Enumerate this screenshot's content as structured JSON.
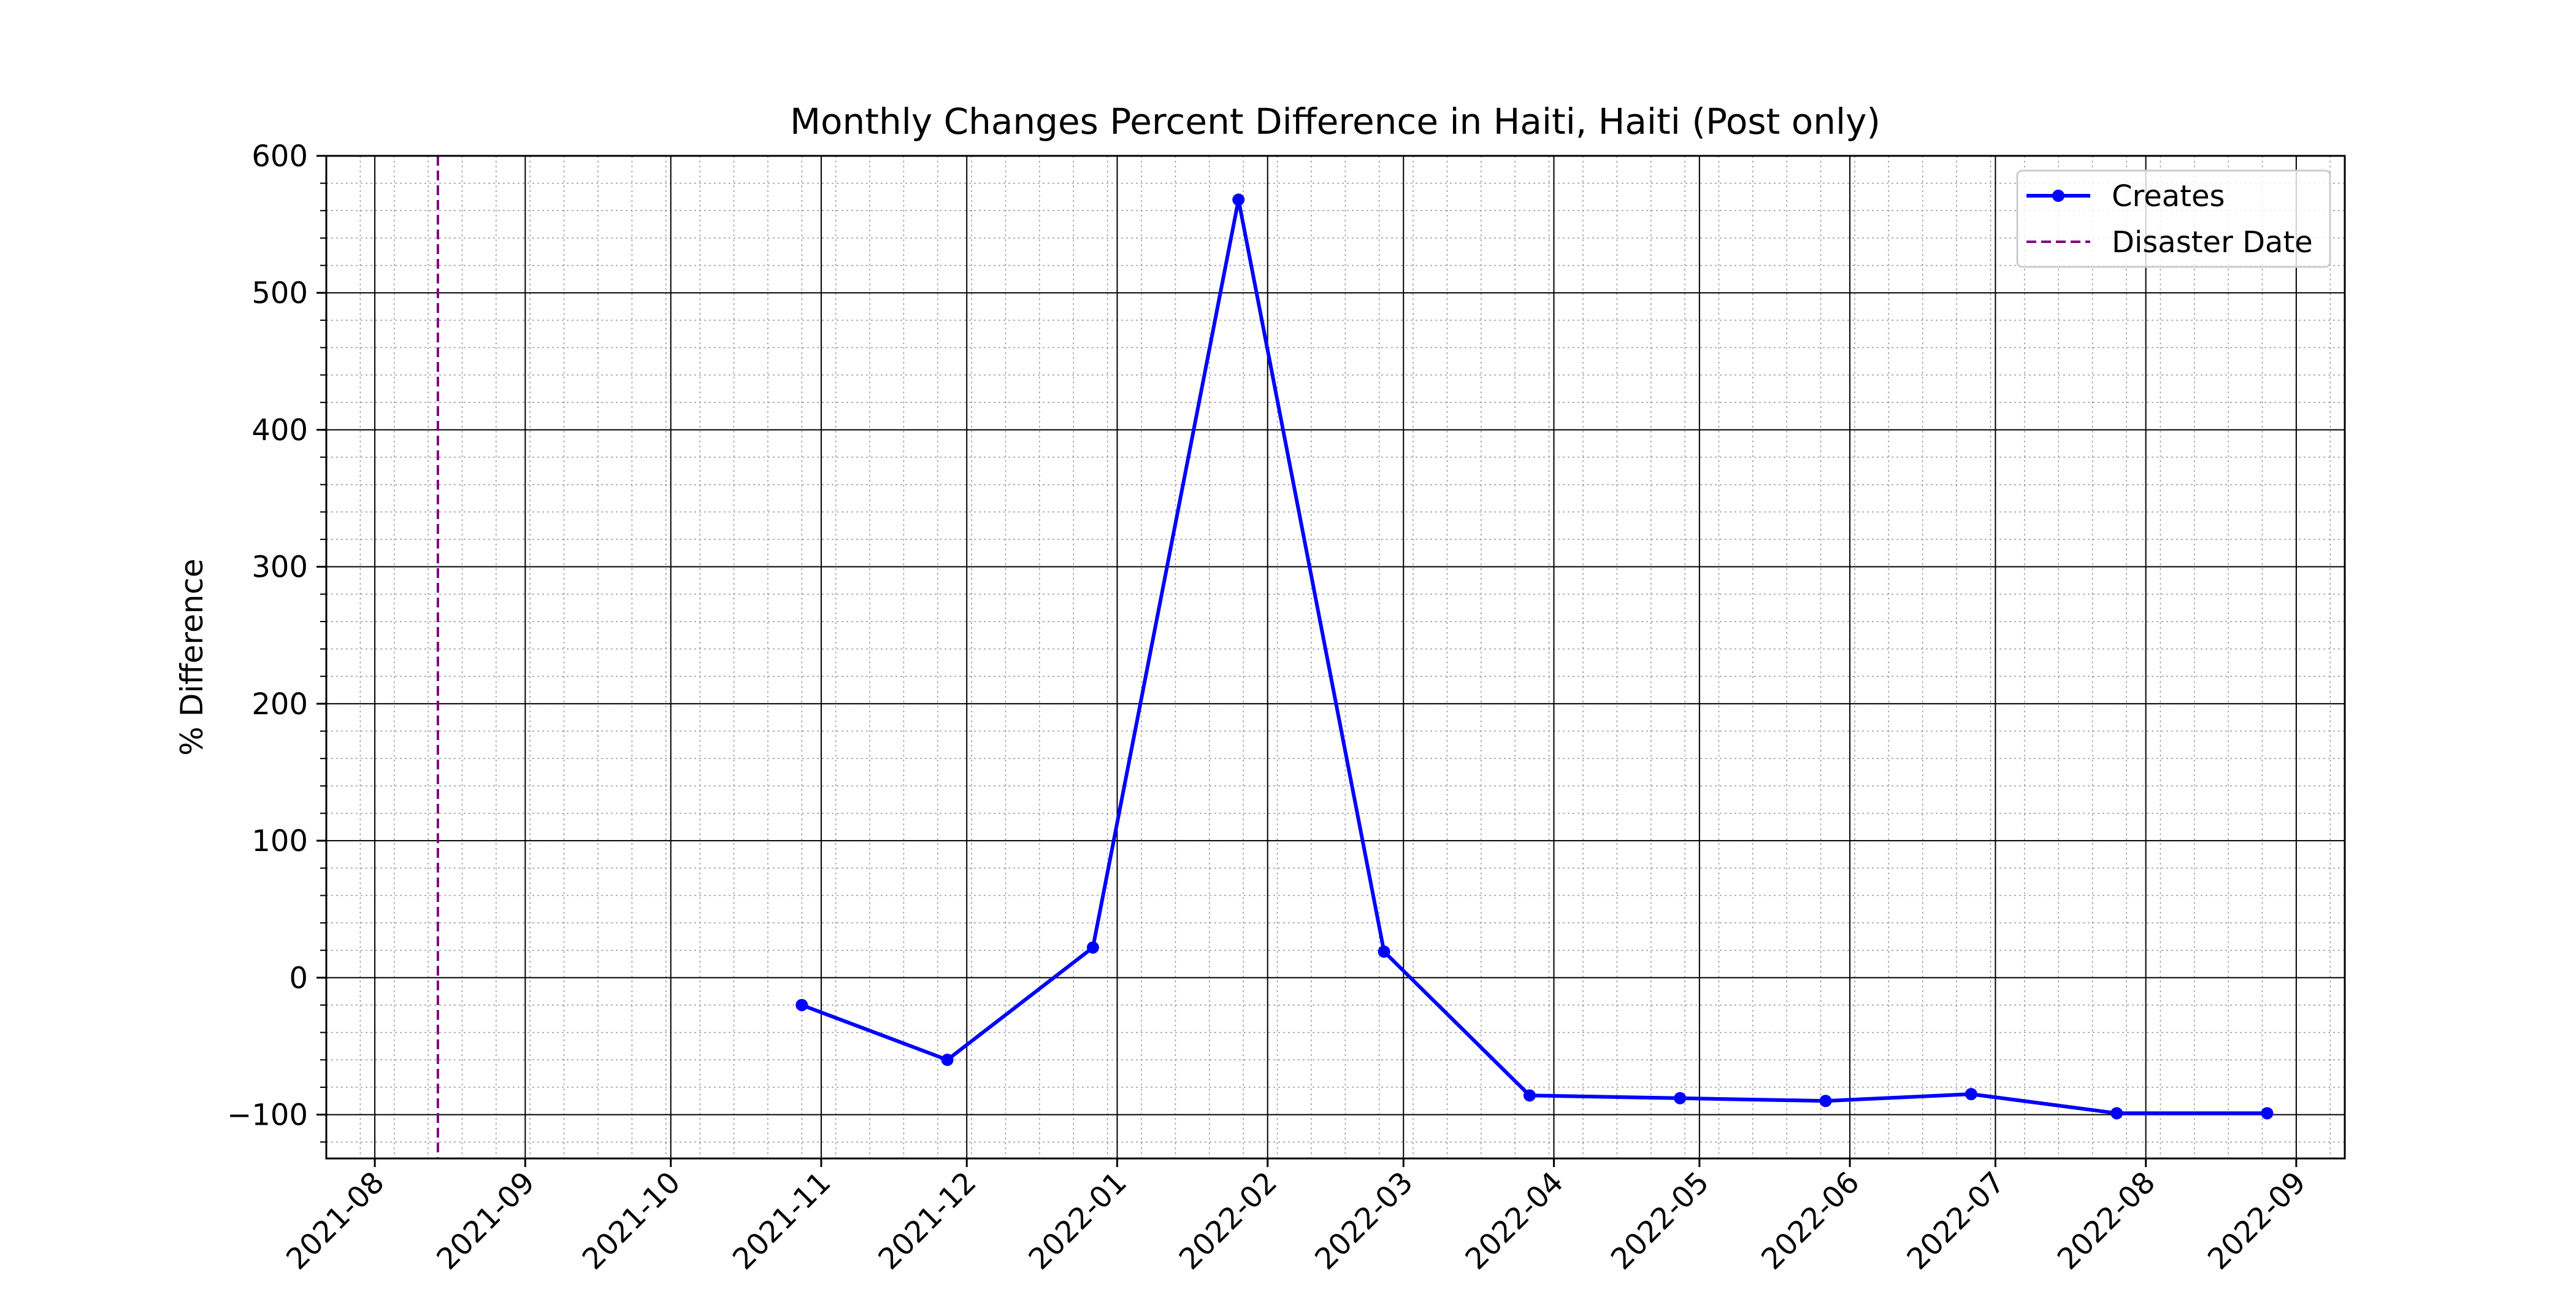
{
  "chart_data": {
    "type": "line",
    "title": "Monthly Changes Percent Difference in Haiti, Haiti (Post only)",
    "xlabel": "",
    "ylabel": "% Difference",
    "xlim": [
      "2021-07-22",
      "2022-09-11"
    ],
    "ylim": [
      -132,
      600
    ],
    "x_ticks": [
      "2021-08",
      "2021-09",
      "2021-10",
      "2021-11",
      "2021-12",
      "2022-01",
      "2022-02",
      "2022-03",
      "2022-04",
      "2022-05",
      "2022-06",
      "2022-07",
      "2022-08",
      "2022-09"
    ],
    "y_ticks": [
      "−100",
      "0",
      "100",
      "200",
      "300",
      "400",
      "500",
      "600"
    ],
    "grid": "major solid and minor dotted",
    "legend_position": "upper right",
    "series": [
      {
        "name": "Creates",
        "color": "#0000ff",
        "marker": "circle",
        "points": [
          {
            "x": "2021-10-28",
            "y": -20
          },
          {
            "x": "2021-11-27",
            "y": -60
          },
          {
            "x": "2021-12-27",
            "y": 22
          },
          {
            "x": "2022-01-26",
            "y": 568
          },
          {
            "x": "2022-02-25",
            "y": 19
          },
          {
            "x": "2022-03-27",
            "y": -86
          },
          {
            "x": "2022-04-27",
            "y": -88
          },
          {
            "x": "2022-05-27",
            "y": -90
          },
          {
            "x": "2022-06-26",
            "y": -85
          },
          {
            "x": "2022-07-26",
            "y": -99
          },
          {
            "x": "2022-08-26",
            "y": -99
          }
        ]
      }
    ],
    "reference_lines": [
      {
        "name": "Disaster Date",
        "x": "2021-08-14",
        "color": "#800080",
        "style": "dashed"
      }
    ]
  }
}
